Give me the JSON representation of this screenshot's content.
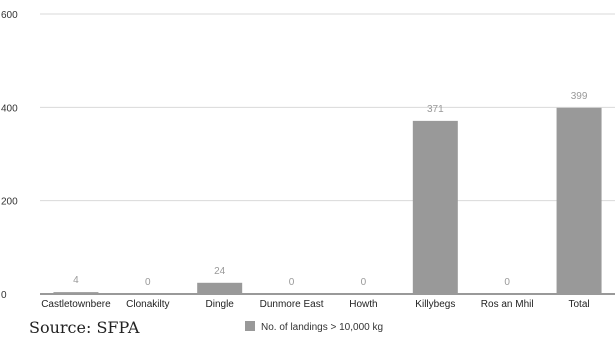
{
  "source_text": "Source: SFPA",
  "chart_data": {
    "type": "bar",
    "categories": [
      "Castletownbere",
      "Clonakilty",
      "Dingle",
      "Dunmore East",
      "Howth",
      "Killybegs",
      "Ros an Mhil",
      "Total"
    ],
    "series": [
      {
        "name": "No. of landings > 10,000 kg",
        "values": [
          4,
          0,
          24,
          0,
          0,
          371,
          0,
          399
        ],
        "color": "#999999"
      }
    ],
    "data_labels": [
      "4",
      "0",
      "24",
      "0",
      "0",
      "371",
      "0",
      "399"
    ],
    "yticks": [
      "0",
      "200",
      "400",
      "600"
    ],
    "ylim": [
      0,
      600
    ],
    "title": "",
    "xlabel": "",
    "ylabel": "",
    "grid": true,
    "legend_position": "bottom",
    "colors": {
      "bar": "#999999",
      "grid": "#d9d9d9",
      "axis": "#333333",
      "label": "#999999"
    }
  }
}
